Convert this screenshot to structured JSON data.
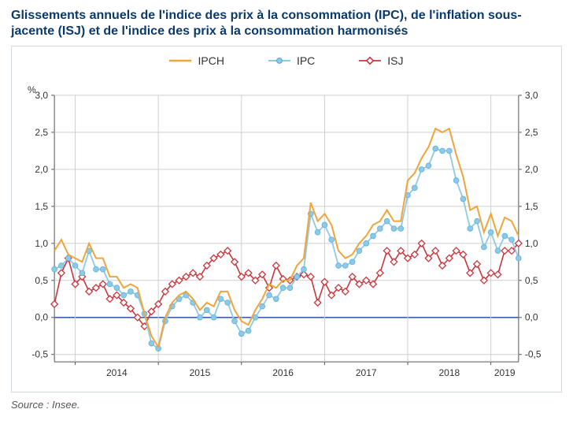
{
  "title": "Glissements annuels de l'indice des prix à la consommation (IPC), de l'inflation sous-jacente (ISJ) et de l'indice des prix à la consommation harmonisés",
  "pct_label": "%",
  "source": "Source : Insee.",
  "legend": {
    "ipch": "IPCH",
    "ipc": "IPC",
    "isj": "ISJ"
  },
  "chart": {
    "type": "line",
    "ylim": [
      -0.6,
      3.0
    ],
    "yticks": [
      -0.5,
      0.0,
      0.5,
      1.0,
      1.5,
      2.0,
      2.5,
      3.0
    ],
    "xlim": [
      "2013-10",
      "2019-09"
    ],
    "x_year_labels": [
      "2014",
      "2015",
      "2016",
      "2017",
      "2018",
      "2019"
    ],
    "tick_fontsize": 12,
    "grid_color": "#cfcfcf",
    "axis_color": "#555555",
    "zero_line_color": "#3a5fb0",
    "background_color": "#ffffff",
    "series": {
      "ipch": {
        "color": "#f0a43c",
        "line_width": 2.0,
        "marker": "none",
        "data": [
          0.9,
          1.05,
          0.85,
          0.8,
          0.75,
          1.0,
          0.8,
          0.8,
          0.55,
          0.55,
          0.4,
          0.45,
          0.4,
          0.05,
          -0.25,
          -0.4,
          0.0,
          0.2,
          0.3,
          0.35,
          0.25,
          0.1,
          0.2,
          0.15,
          0.35,
          0.35,
          0.1,
          -0.05,
          -0.1,
          0.1,
          0.25,
          0.45,
          0.4,
          0.5,
          0.5,
          0.7,
          0.8,
          1.55,
          1.3,
          1.4,
          1.25,
          0.9,
          0.8,
          0.85,
          1.0,
          1.1,
          1.25,
          1.3,
          1.45,
          1.3,
          1.3,
          1.85,
          1.95,
          2.15,
          2.3,
          2.55,
          2.5,
          2.55,
          2.2,
          1.9,
          1.45,
          1.5,
          1.15,
          1.4,
          1.1,
          1.35,
          1.3,
          1.1
        ]
      },
      "ipc": {
        "color": "#8fc9e8",
        "line_width": 1.8,
        "marker": "circle",
        "marker_size": 3.4,
        "data": [
          0.65,
          0.7,
          0.8,
          0.7,
          0.6,
          0.9,
          0.65,
          0.65,
          0.45,
          0.4,
          0.3,
          0.35,
          0.3,
          0.05,
          -0.35,
          -0.42,
          -0.05,
          0.15,
          0.25,
          0.3,
          0.2,
          0.0,
          0.1,
          0.0,
          0.25,
          0.2,
          -0.05,
          -0.22,
          -0.18,
          0.0,
          0.15,
          0.3,
          0.25,
          0.4,
          0.4,
          0.55,
          0.65,
          1.4,
          1.15,
          1.25,
          1.05,
          0.7,
          0.7,
          0.75,
          0.9,
          1.0,
          1.1,
          1.2,
          1.3,
          1.2,
          1.2,
          1.65,
          1.75,
          2.0,
          2.05,
          2.28,
          2.25,
          2.25,
          1.85,
          1.6,
          1.2,
          1.3,
          0.95,
          1.15,
          0.9,
          1.1,
          1.05,
          0.8
        ]
      },
      "isj": {
        "color": "#c8373e",
        "line_width": 1.6,
        "marker": "diamond",
        "marker_size": 4.2,
        "data": [
          0.18,
          0.6,
          0.8,
          0.45,
          0.55,
          0.35,
          0.4,
          0.45,
          0.25,
          0.3,
          0.2,
          0.12,
          0.0,
          -0.12,
          0.08,
          0.18,
          0.35,
          0.45,
          0.5,
          0.55,
          0.6,
          0.55,
          0.7,
          0.8,
          0.85,
          0.9,
          0.75,
          0.55,
          0.6,
          0.5,
          0.58,
          0.4,
          0.7,
          0.52,
          0.5,
          0.55,
          0.58,
          0.55,
          0.2,
          0.48,
          0.3,
          0.4,
          0.35,
          0.55,
          0.45,
          0.5,
          0.45,
          0.6,
          0.9,
          0.75,
          0.9,
          0.8,
          0.85,
          1.0,
          0.8,
          0.9,
          0.7,
          0.8,
          0.9,
          0.85,
          0.6,
          0.72,
          0.5,
          0.6,
          0.58,
          0.9,
          0.9,
          1.0
        ]
      }
    }
  }
}
